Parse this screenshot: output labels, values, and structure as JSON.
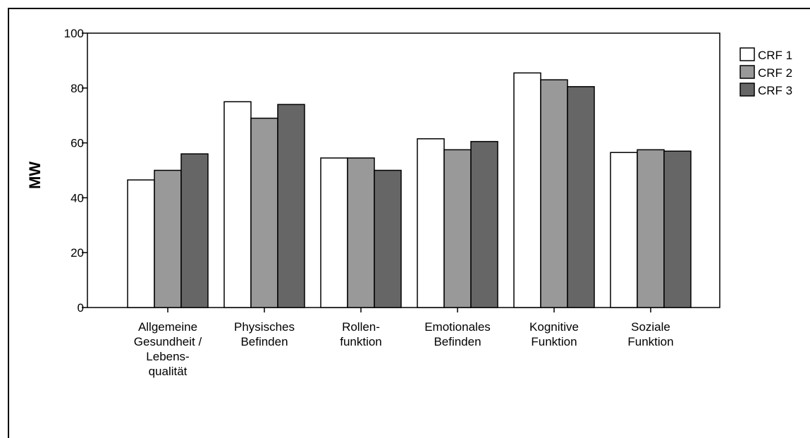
{
  "chart_data": {
    "type": "bar",
    "title": "",
    "xlabel": "",
    "ylabel": "MW",
    "ylim": [
      0,
      100
    ],
    "yticks": [
      0,
      20,
      40,
      60,
      80,
      100
    ],
    "grid": false,
    "legend_position": "top-right",
    "categories": [
      [
        "Allgemeine",
        "Gesundheit /",
        "Lebens-",
        "qualität"
      ],
      [
        "Physisches",
        "Befinden"
      ],
      [
        "Rollen-",
        "funktion"
      ],
      [
        "Emotionales",
        "Befinden"
      ],
      [
        "Kognitive",
        "Funktion"
      ],
      [
        "Soziale",
        "Funktion"
      ]
    ],
    "series": [
      {
        "name": "CRF 1",
        "color": "#ffffff",
        "values": [
          46.5,
          75.0,
          54.5,
          61.5,
          85.5,
          56.5
        ]
      },
      {
        "name": "CRF 2",
        "color": "#999999",
        "values": [
          50.0,
          69.0,
          54.5,
          57.5,
          83.0,
          57.5
        ]
      },
      {
        "name": "CRF 3",
        "color": "#666666",
        "values": [
          56.0,
          74.0,
          50.0,
          60.5,
          80.5,
          57.0
        ]
      }
    ]
  }
}
